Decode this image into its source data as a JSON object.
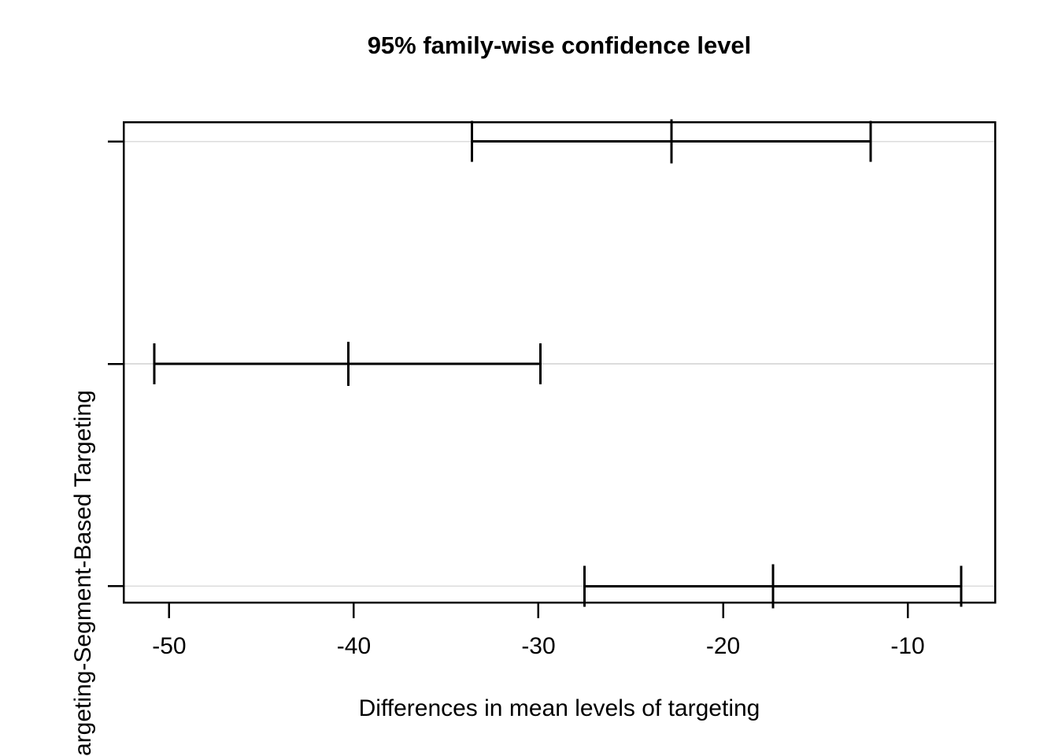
{
  "figure": {
    "title": "95% family-wise confidence level",
    "x_axis_label": "Differences in mean levels of targeting",
    "y_axis_visible_tick_label": "argeting-Segment-Based Targeting"
  },
  "colors": {
    "background": "#ffffff",
    "line": "#000000",
    "gridline": "#dcdcdc"
  },
  "chart_data": {
    "type": "scatter",
    "subtype": "tukey-hsd-horizontal-confidence-intervals",
    "title": "95% family-wise confidence level",
    "xlabel": "Differences in mean levels of targeting",
    "ylabel": "",
    "confidence_level": "95%",
    "xlim": [
      -52.47,
      -5.27
    ],
    "ylim": [
      0.92,
      3.08
    ],
    "x_ticks": [
      -50,
      -40,
      -30,
      -20,
      -10
    ],
    "x_tick_labels": [
      "-50",
      "-40",
      "-30",
      "-20",
      "-10"
    ],
    "grid": {
      "horizontal_gridlines_at_each_row": true,
      "vertical": false
    },
    "legend": "none",
    "rows": [
      {
        "y": 3,
        "lwr": -33.6,
        "diff": -22.8,
        "upr": -12.0,
        "tick_label_visible": ""
      },
      {
        "y": 2,
        "lwr": -50.8,
        "diff": -40.3,
        "upr": -29.9,
        "tick_label_visible": ""
      },
      {
        "y": 1,
        "lwr": -27.5,
        "diff": -17.3,
        "upr": -7.1,
        "tick_label_visible": "argeting-Segment-Based Targeting"
      }
    ]
  }
}
